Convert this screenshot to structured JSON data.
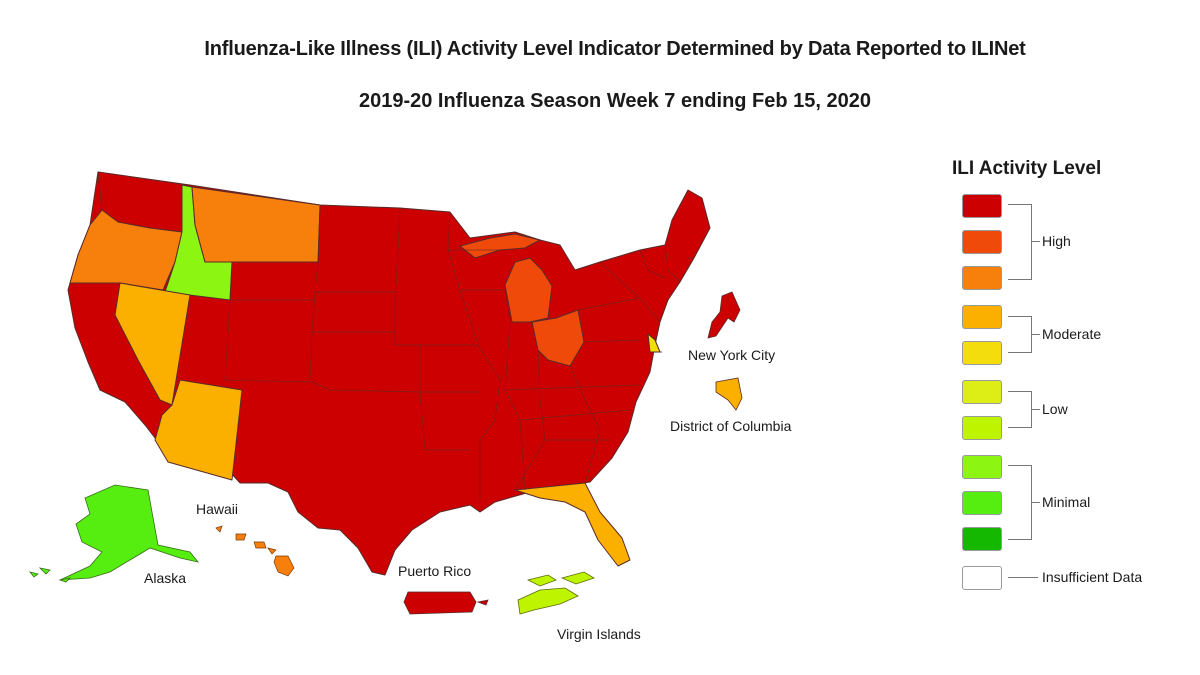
{
  "title": "Influenza-Like Illness (ILI) Activity Level Indicator Determined by Data Reported to ILINet",
  "subtitle": "2019-20 Influenza Season Week 7 ending Feb 15, 2020",
  "colors": {
    "high_1": "#cc0000",
    "high_2": "#f04a0a",
    "high_3": "#f77f0c",
    "moderate_1": "#fbb000",
    "moderate_2": "#f3dd0c",
    "low_1": "#dcee16",
    "low_2": "#bff400",
    "minimal_1": "#8cf512",
    "minimal_2": "#55ee10",
    "minimal_3": "#14b800",
    "insufficient": "#ffffff"
  },
  "jurisdictions": [
    {
      "name": "Washington",
      "level": "high_1"
    },
    {
      "name": "Oregon",
      "level": "high_3"
    },
    {
      "name": "Idaho",
      "level": "minimal_1"
    },
    {
      "name": "Montana",
      "level": "high_3"
    },
    {
      "name": "Nevada",
      "level": "moderate_1"
    },
    {
      "name": "Arizona",
      "level": "moderate_1"
    },
    {
      "name": "Michigan",
      "level": "high_2"
    },
    {
      "name": "Ohio",
      "level": "high_2"
    },
    {
      "name": "Florida",
      "level": "moderate_1"
    },
    {
      "name": "Delaware",
      "level": "moderate_2"
    },
    {
      "name": "Alaska",
      "level": "minimal_2"
    },
    {
      "name": "Hawaii",
      "level": "high_3"
    },
    {
      "name": "New York City",
      "level": "high_1"
    },
    {
      "name": "District of Columbia",
      "level": "moderate_1"
    },
    {
      "name": "Puerto Rico",
      "level": "high_1"
    },
    {
      "name": "Virgin Islands",
      "level": "low_2"
    }
  ],
  "map_labels": {
    "new_york_city": "New York City",
    "district_of_columbia": "District of Columbia",
    "hawaii": "Hawaii",
    "alaska": "Alaska",
    "puerto_rico": "Puerto Rico",
    "virgin_islands": "Virgin Islands"
  },
  "legend": {
    "title": "ILI Activity Level",
    "groups": [
      {
        "label": "High"
      },
      {
        "label": "Moderate"
      },
      {
        "label": "Low"
      },
      {
        "label": "Minimal"
      },
      {
        "label": "Insufficient Data"
      }
    ]
  }
}
